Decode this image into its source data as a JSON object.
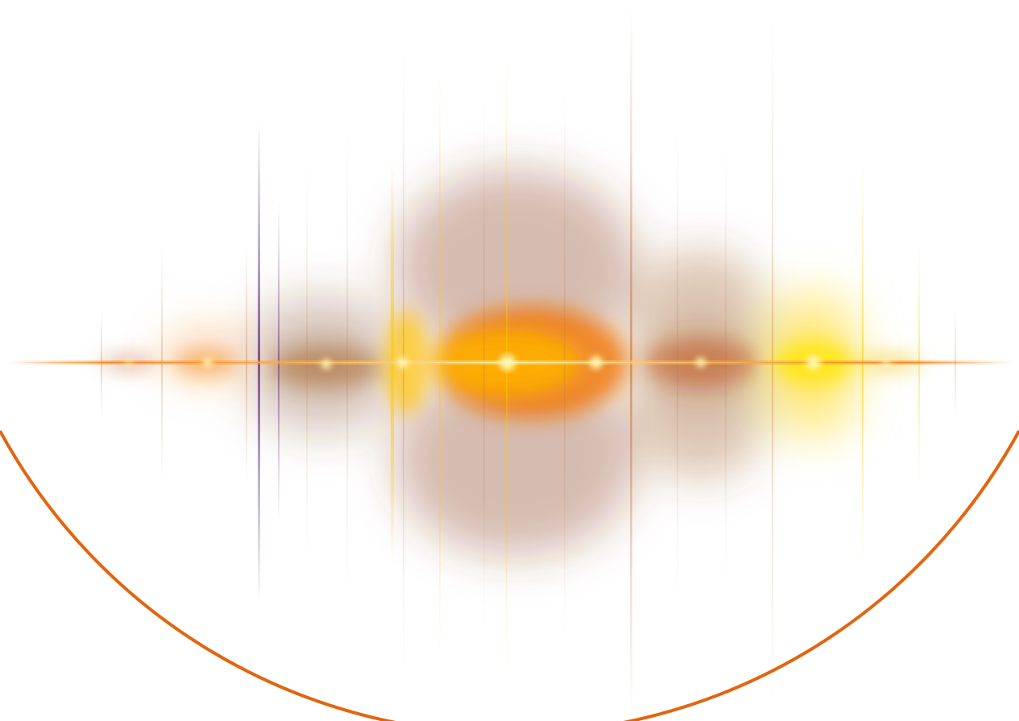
{
  "image": {
    "subject": "",
    "palette": {
      "background": "#ffffff",
      "ring": "#e2650f",
      "core_white": "#fffbe0",
      "core_yellow": "#ffe600",
      "amber": "#ffb000",
      "orange": "#f07a10",
      "brown": "#8a3f12",
      "violet": "#5a2a7a"
    }
  }
}
